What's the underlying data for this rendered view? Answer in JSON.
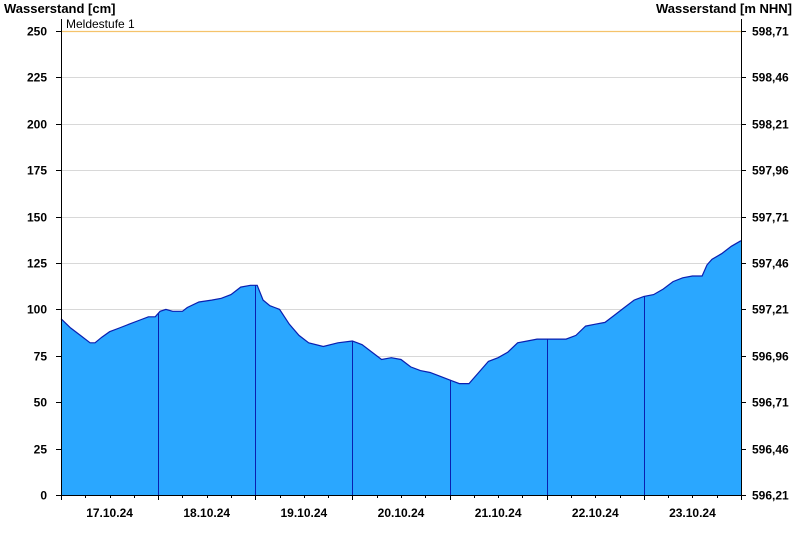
{
  "chart_data": {
    "type": "area",
    "title": "",
    "ylabel_left": "Wasserstand [cm]",
    "ylabel_right": "Wasserstand [m NHN]",
    "ylim": [
      0,
      250
    ],
    "yticks_left": [
      0,
      25,
      50,
      75,
      100,
      125,
      150,
      175,
      200,
      225,
      250
    ],
    "yticks_right": [
      "596,21",
      "596,46",
      "596,71",
      "596,96",
      "597,21",
      "597,46",
      "597,71",
      "597,96",
      "598,21",
      "598,46",
      "598,71"
    ],
    "xlim": [
      0,
      7
    ],
    "x_tick_labels": [
      "17.10.24",
      "18.10.24",
      "19.10.24",
      "20.10.24",
      "21.10.24",
      "22.10.24",
      "23.10.24"
    ],
    "grid": true,
    "threshold": {
      "label": "Meldestufe 1",
      "value": 250,
      "color": "#f5c36b"
    },
    "colors": {
      "fill": "#2aa7ff",
      "line": "#0a1fb0",
      "grid": "#d8d8d8"
    },
    "series": [
      {
        "x": [
          0.0,
          0.1,
          0.2,
          0.3,
          0.35,
          0.42,
          0.5,
          0.6,
          0.7,
          0.8,
          0.9,
          0.97,
          1.02,
          1.08,
          1.15,
          1.25,
          1.3,
          1.42,
          1.55,
          1.65,
          1.75,
          1.85,
          1.95,
          2.02,
          2.08,
          2.15,
          2.2,
          2.25,
          2.35,
          2.45,
          2.55,
          2.7,
          2.85,
          3.0,
          3.05,
          3.1,
          3.2,
          3.3,
          3.4,
          3.5,
          3.6,
          3.7,
          3.8,
          3.9,
          4.0,
          4.1,
          4.2,
          4.3,
          4.4,
          4.5,
          4.6,
          4.7,
          4.8,
          4.9,
          5.0,
          5.1,
          5.2,
          5.3,
          5.4,
          5.5,
          5.6,
          5.7,
          5.8,
          5.9,
          6.0,
          6.1,
          6.2,
          6.3,
          6.4,
          6.5,
          6.6,
          6.65,
          6.7,
          6.8,
          6.9,
          7.0
        ],
        "values": [
          95,
          90,
          86,
          82,
          82,
          85,
          88,
          90,
          92,
          94,
          96,
          96,
          99,
          100,
          99,
          99,
          101,
          104,
          105,
          106,
          108,
          112,
          113,
          113,
          105,
          102,
          101,
          100,
          92,
          86,
          82,
          80,
          82,
          83,
          82,
          81,
          77,
          73,
          74,
          73,
          69,
          67,
          66,
          64,
          62,
          60,
          60,
          66,
          72,
          74,
          77,
          82,
          83,
          84,
          84,
          84,
          84,
          86,
          91,
          92,
          93,
          97,
          101,
          105,
          107,
          108,
          111,
          115,
          117,
          118,
          118,
          124,
          127,
          130,
          134,
          137
        ]
      }
    ]
  }
}
